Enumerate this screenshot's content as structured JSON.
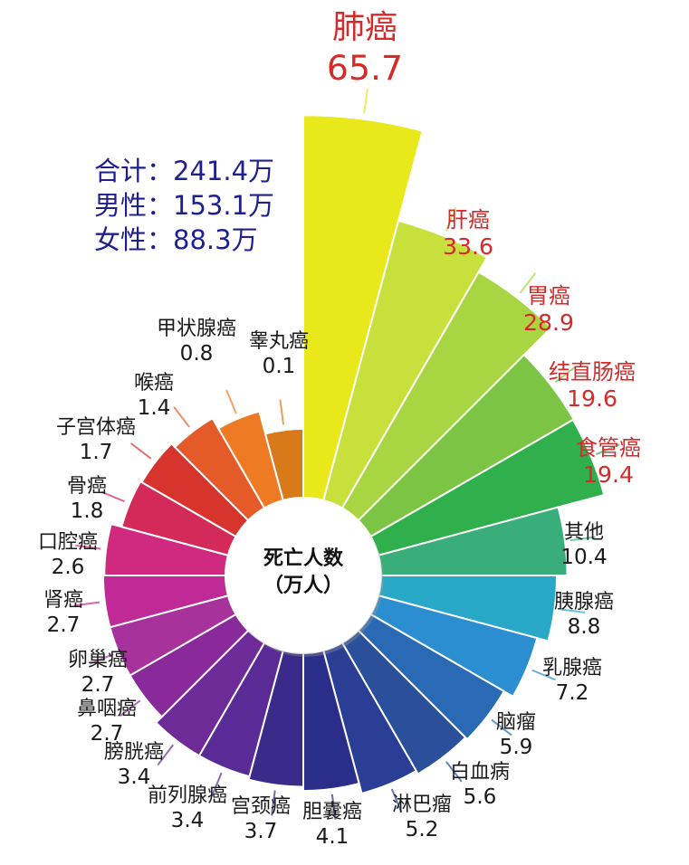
{
  "summary": {
    "total": "合计：241.4万",
    "male": "男性：153.1万",
    "female": "女性：88.3万"
  },
  "center": {
    "line1": "死亡人数",
    "line2": "（万人）"
  },
  "chart_data": {
    "type": "polar-bar",
    "title": "死亡人数（万人）",
    "unit": "万人",
    "totals": {
      "合计": 241.4,
      "男性": 153.1,
      "女性": 88.3
    },
    "categories": [
      "肺癌",
      "肝癌",
      "胃癌",
      "结直肠癌",
      "食管癌",
      "其他",
      "胰腺癌",
      "乳腺癌",
      "脑瘤",
      "白血病",
      "淋巴瘤",
      "胆囊癌",
      "宫颈癌",
      "前列腺癌",
      "膀胱癌",
      "鼻咽癌",
      "卵巢癌",
      "肾癌",
      "口腔癌",
      "骨癌",
      "子宫体癌",
      "喉癌",
      "甲状腺癌",
      "睾丸癌"
    ],
    "values": [
      65.7,
      33.6,
      28.9,
      19.6,
      19.4,
      10.4,
      8.8,
      7.2,
      5.9,
      5.6,
      5.2,
      4.1,
      3.7,
      3.4,
      3.4,
      2.7,
      2.7,
      2.7,
      2.6,
      1.8,
      1.7,
      1.4,
      0.8,
      0.1
    ],
    "highlighted": [
      "肺癌",
      "肝癌",
      "胃癌",
      "结直肠癌",
      "食管癌"
    ],
    "colors": [
      "#e8e81a",
      "#c8e03c",
      "#a8d642",
      "#7cc443",
      "#2fb04c",
      "#3aae7a",
      "#2aa8c8",
      "#2a8ed0",
      "#2a6ab4",
      "#2a509c",
      "#2a3e96",
      "#2a2e8a",
      "#3a2a8a",
      "#5a2a96",
      "#6e2a96",
      "#8a2a9a",
      "#a8329c",
      "#c02a96",
      "#d02a80",
      "#d42a5a",
      "#d8342e",
      "#e45a28",
      "#ee7a24",
      "#d87a1a"
    ],
    "label_colors": {
      "highlight": "#d42a2a",
      "normal": "#1a1a1a",
      "summary": "#1f1f8f"
    }
  }
}
